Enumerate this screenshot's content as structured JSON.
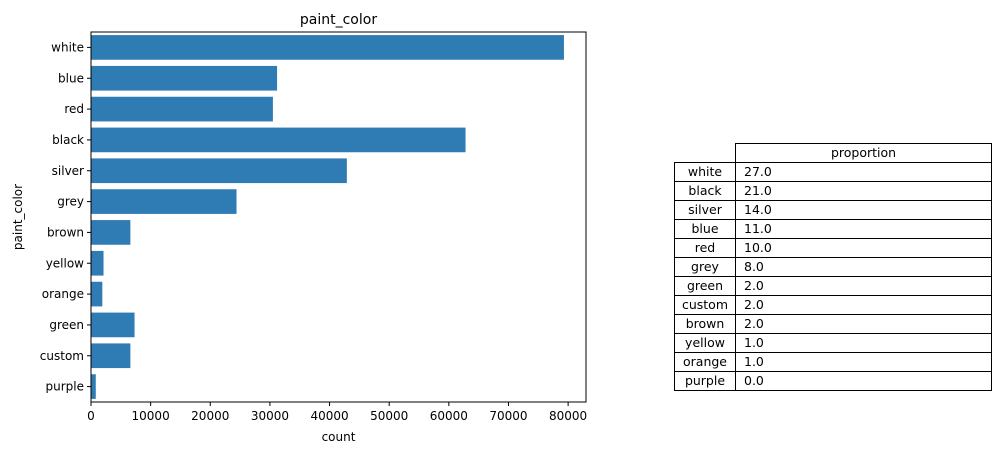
{
  "chart_data": {
    "type": "bar",
    "orientation": "horizontal",
    "title": "paint_color",
    "xlabel": "count",
    "ylabel": "paint_color",
    "categories": [
      "white",
      "blue",
      "red",
      "black",
      "silver",
      "grey",
      "brown",
      "yellow",
      "orange",
      "green",
      "custom",
      "purple"
    ],
    "values": [
      79300,
      31200,
      30500,
      62800,
      42900,
      24400,
      6600,
      2100,
      1900,
      7300,
      6600,
      800
    ],
    "xlim": [
      0,
      83000
    ],
    "xticks": [
      0,
      10000,
      20000,
      30000,
      40000,
      50000,
      60000,
      70000,
      80000
    ],
    "xtick_labels": [
      "0",
      "10000",
      "20000",
      "30000",
      "40000",
      "50000",
      "60000",
      "70000",
      "80000"
    ],
    "bar_color": "#2f7bb3",
    "grid": false
  },
  "table": {
    "column_header": "proportion",
    "rows": [
      {
        "label": "white",
        "value": "27.0"
      },
      {
        "label": "black",
        "value": "21.0"
      },
      {
        "label": "silver",
        "value": "14.0"
      },
      {
        "label": "blue",
        "value": "11.0"
      },
      {
        "label": "red",
        "value": "10.0"
      },
      {
        "label": "grey",
        "value": "8.0"
      },
      {
        "label": "green",
        "value": "2.0"
      },
      {
        "label": "custom",
        "value": "2.0"
      },
      {
        "label": "brown",
        "value": "2.0"
      },
      {
        "label": "yellow",
        "value": "1.0"
      },
      {
        "label": "orange",
        "value": "1.0"
      },
      {
        "label": "purple",
        "value": "0.0"
      }
    ]
  }
}
